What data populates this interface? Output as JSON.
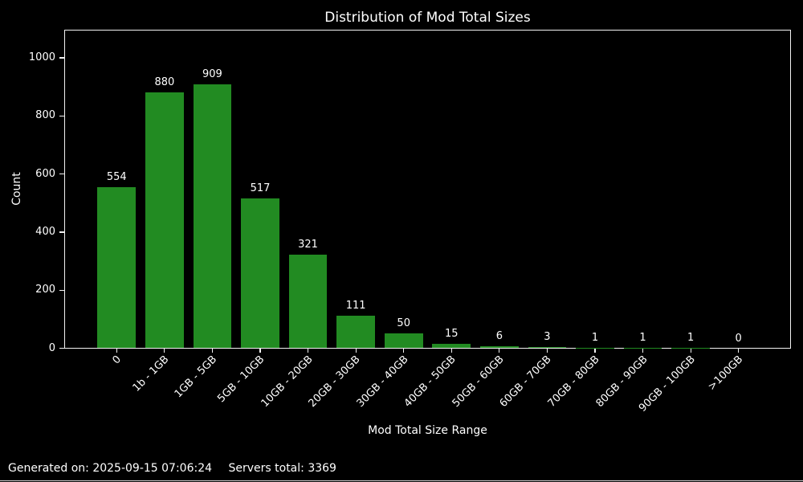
{
  "chart_data": {
    "type": "bar",
    "title": "Distribution of Mod Total Sizes",
    "xlabel": "Mod Total Size Range",
    "ylabel": "Count",
    "categories": [
      "0",
      "1b - 1GB",
      "1GB - 5GB",
      "5GB - 10GB",
      "10GB - 20GB",
      "20GB - 30GB",
      "30GB - 40GB",
      "40GB - 50GB",
      "50GB - 60GB",
      "60GB - 70GB",
      "70GB - 80GB",
      "80GB - 90GB",
      "90GB - 100GB",
      ">100GB"
    ],
    "values": [
      554,
      880,
      909,
      517,
      321,
      111,
      50,
      15,
      6,
      3,
      1,
      1,
      1,
      0
    ],
    "yticks": [
      0,
      200,
      400,
      600,
      800,
      1000
    ],
    "ylim": [
      0,
      1097
    ],
    "grid": false,
    "legend": "none",
    "bar_color": "#228B22",
    "background_color": "#000000",
    "text_color": "#ffffff"
  },
  "footer": {
    "generated": "Generated on: 2025-09-15 07:06:24",
    "servers_total": "Servers total: 3369"
  }
}
